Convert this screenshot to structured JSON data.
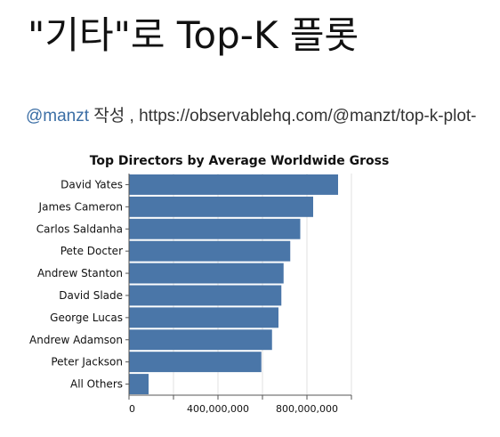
{
  "page": {
    "title": "\"기타\"로 Top-K 플롯",
    "author_link": "@manzt",
    "author_suffix": " 작성 , ",
    "url_text": "https://observablehq.com/@manzt/top-k-plot-"
  },
  "chart_data": {
    "type": "bar",
    "orientation": "horizontal",
    "title": "Top Directors by Average Worldwide Gross",
    "xlabel": "",
    "ylabel": "",
    "categories": [
      "David Yates",
      "James Cameron",
      "Carlos Saldanha",
      "Pete Docter",
      "Andrew Stanton",
      "David Slade",
      "George Lucas",
      "Andrew Adamson",
      "Peter Jackson",
      "All Others"
    ],
    "values": [
      940000000,
      828000000,
      770000000,
      725000000,
      695000000,
      685000000,
      672000000,
      643000000,
      595000000,
      88000000
    ],
    "xlim": [
      0,
      1000000000
    ],
    "xticks": [
      0,
      400000000,
      800000000
    ],
    "xtick_labels": [
      "0",
      "400,000,000",
      "800,000,000"
    ],
    "grid": true,
    "color": "#4a76a8"
  }
}
